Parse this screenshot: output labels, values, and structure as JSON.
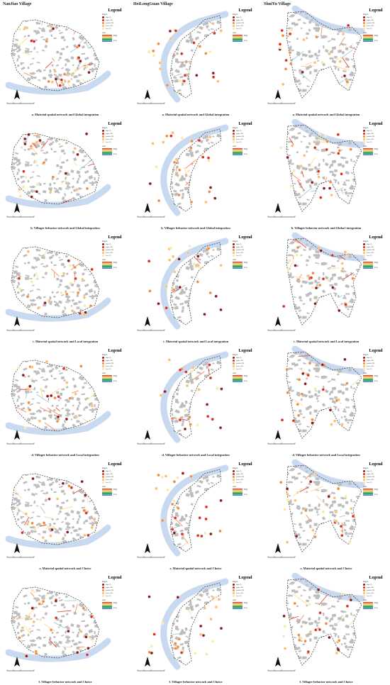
{
  "columns": [
    {
      "title": "NanJiao Village",
      "captions": [
        "a. Material spatial network and Global integration",
        "b. Villager behavior network and Global integration",
        "c. Material spatial network and Local integration",
        "d. Villager behavior network and Local integration",
        "e. Material spatial network and Choice",
        "f. Villager behavior network  and Choice"
      ]
    },
    {
      "title": "HeiLongGuan Village",
      "captions": [
        "a. Material spatial network and Global integration",
        "b. Villager behavior network and Global integration",
        "c. Material spatial network and Local integration",
        "d. Villager behavior network and Local integration",
        "e. Material spatial network and Choice",
        "f. Villager behavior network  and Choice"
      ]
    },
    {
      "title": "ShuiYu Village",
      "captions": [
        "a. Material spatial network and Global integration",
        "b. Villager behavior network and Globa1 integration",
        "c. Material spatial network and Local integration",
        "d. Villager behavior network and Local integration",
        "e. Material spatial network and Choice",
        "f. Villager behavior network  and Choice"
      ]
    }
  ],
  "legend": {
    "title": "Legend",
    "degree_label": "Degree",
    "degree_items": [
      {
        "label": "high (I)",
        "color": "#8b1a1a"
      },
      {
        "label": "higher (II)",
        "color": "#d7301f"
      },
      {
        "label": "middle (III)",
        "color": "#f08b3a"
      },
      {
        "label": "lower (IV)",
        "color": "#f9c06b"
      },
      {
        "label": "low (V)",
        "color": "#fde6a8"
      }
    ],
    "axis_label": "Axis",
    "high_label": "High",
    "low_label": "Low"
  },
  "colors": {
    "water": "#c9d9ef",
    "building": "#bdbdbd",
    "boundary": "#333333"
  }
}
